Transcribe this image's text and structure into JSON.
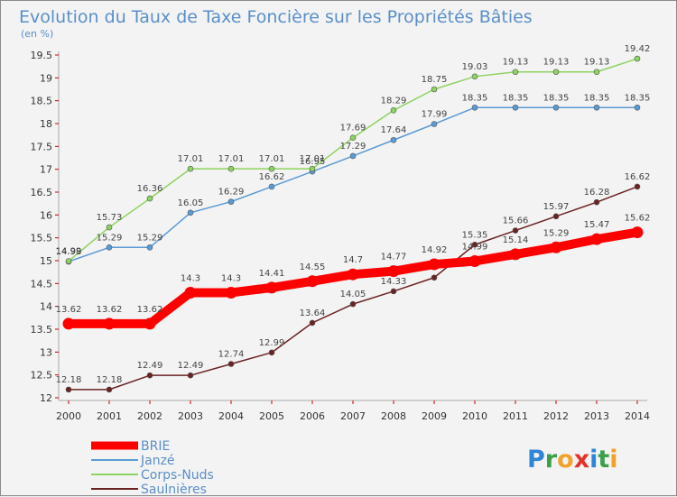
{
  "chart_data": {
    "type": "line",
    "title": "Evolution du Taux de Taxe Foncière sur les Propriétés Bâties",
    "subtitle": "(en %)",
    "x": [
      2000,
      2001,
      2002,
      2003,
      2004,
      2005,
      2006,
      2007,
      2008,
      2009,
      2010,
      2011,
      2012,
      2013,
      2014
    ],
    "ylim": [
      12,
      19.5
    ],
    "yticks": [
      "12",
      "12.5",
      "13",
      "13.5",
      "14",
      "14.5",
      "15",
      "15.5",
      "16",
      "16.5",
      "17",
      "17.5",
      "18",
      "18.5",
      "19",
      "19.5"
    ],
    "grid": false,
    "legend_position": "bottom-left",
    "series": [
      {
        "name": "BRIE",
        "color": "#ff0000",
        "values": [
          13.62,
          13.62,
          13.62,
          14.3,
          14.3,
          14.41,
          14.55,
          14.7,
          14.77,
          14.92,
          14.99,
          15.14,
          15.29,
          15.47,
          15.62
        ],
        "labels": [
          "13.62",
          "13.62",
          "13.62",
          "14.3",
          "14.3",
          "14.41",
          "14.55",
          "14.7",
          "14.77",
          "14.92",
          "14.99",
          "15.14",
          "15.29",
          "15.47",
          "15.62"
        ]
      },
      {
        "name": "Janzé",
        "color": "#5b9bd5",
        "values": [
          14.98,
          15.29,
          15.29,
          16.05,
          16.29,
          16.62,
          16.95,
          17.29,
          17.64,
          17.99,
          18.35,
          18.35,
          18.35,
          18.35,
          18.35
        ],
        "labels": [
          "14.98",
          "15.29",
          "15.29",
          "16.05",
          "16.29",
          "16.62",
          "16.95",
          "17.29",
          "17.64",
          "17.99",
          "18.35",
          "18.35",
          "18.35",
          "18.35",
          "18.35"
        ]
      },
      {
        "name": "Corps-Nuds",
        "color": "#8dd35f",
        "values": [
          14.99,
          15.73,
          16.36,
          17.01,
          17.01,
          17.01,
          17.01,
          17.69,
          18.29,
          18.75,
          19.03,
          19.13,
          19.13,
          19.13,
          19.42
        ],
        "labels": [
          "14.99",
          "15.73",
          "16.36",
          "17.01",
          "17.01",
          "17.01",
          "17.01",
          "17.69",
          "18.29",
          "18.75",
          "19.03",
          "19.13",
          "19.13",
          "19.13",
          "19.42"
        ]
      },
      {
        "name": "Saulnières",
        "color": "#6b2222",
        "values": [
          12.18,
          12.18,
          12.49,
          12.49,
          12.74,
          12.99,
          13.64,
          14.05,
          14.33,
          14.63,
          15.35,
          15.66,
          15.97,
          16.28,
          16.62
        ],
        "labels": [
          "12.18",
          "12.18",
          "12.49",
          "12.49",
          "12.74",
          "12.99",
          "13.64",
          "14.05",
          "14.33",
          "",
          "15.35",
          "15.66",
          "15.97",
          "16.28",
          "16.62"
        ]
      }
    ]
  },
  "logo": {
    "letters": [
      "P",
      "r",
      "o",
      "x",
      "i",
      "t",
      "i"
    ],
    "colors": [
      "#2f86d6",
      "#3aa14a",
      "#f2a12b",
      "#e2332a",
      "#2f86d6",
      "#3aa14a",
      "#f2a12b"
    ]
  }
}
